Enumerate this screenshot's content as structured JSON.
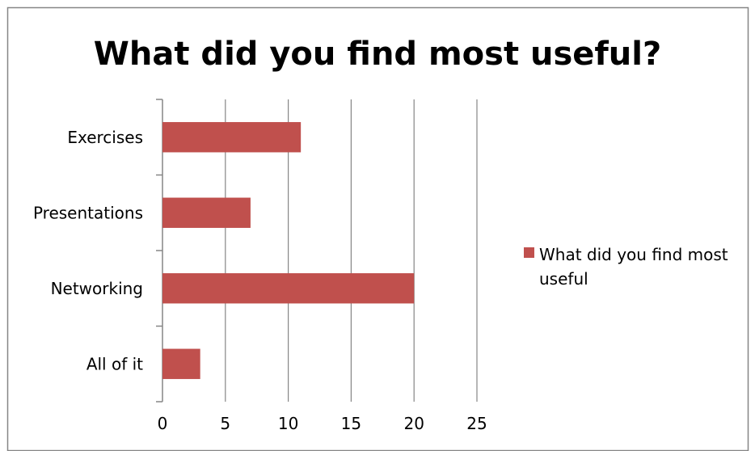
{
  "chart_data": {
    "type": "bar",
    "orientation": "horizontal",
    "title": "What did you find most useful?",
    "xlabel": "",
    "ylabel": "",
    "categories": [
      "Exercises",
      "Presentations",
      "Networking",
      "All of it"
    ],
    "series": [
      {
        "name": "What did you find most useful",
        "values": [
          11,
          7,
          20,
          3
        ],
        "color": "#c0504d"
      }
    ],
    "xlim": [
      0,
      25
    ],
    "x_ticks": [
      0,
      5,
      10,
      15,
      20,
      25
    ],
    "grid": "vertical",
    "legend": "right"
  },
  "colors": {
    "bar": "#c0504d",
    "grid": "#868686",
    "axis": "#868686",
    "border": "#868686"
  }
}
